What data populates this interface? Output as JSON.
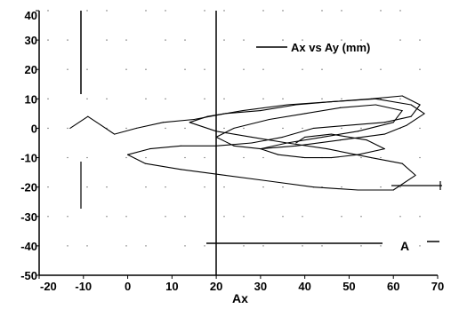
{
  "chart_data": {
    "type": "line",
    "title": "",
    "xlabel": "Ax",
    "ylabel": "",
    "xlim": [
      -20,
      70
    ],
    "ylim": [
      -50,
      40
    ],
    "x_ticks": [
      -20,
      -10,
      0,
      10,
      20,
      30,
      40,
      50,
      60,
      70
    ],
    "y_ticks": [
      40,
      30,
      20,
      10,
      0,
      -10,
      -20,
      -30,
      -40,
      -50
    ],
    "grid": "sparse dotted",
    "legend_position": "top-right",
    "series": [
      {
        "name": "Ax vs Ay (mm)",
        "x": [
          -13,
          -9,
          -6,
          -3,
          2,
          8,
          15,
          22,
          30,
          38,
          46,
          55,
          62,
          66,
          64,
          58,
          50,
          42,
          35,
          28,
          20,
          12,
          5,
          0,
          4,
          12,
          22,
          32,
          42,
          52,
          60,
          65,
          62,
          55,
          45,
          36,
          28,
          20,
          14,
          18,
          26,
          36,
          46,
          56,
          64,
          67,
          63,
          58,
          48,
          38,
          30,
          24,
          20,
          24,
          32,
          40,
          48,
          56,
          62,
          60,
          52,
          44,
          36,
          30,
          34,
          40,
          46,
          52,
          58,
          54,
          46,
          40,
          38
        ],
        "y": [
          0,
          4,
          1,
          -2,
          0,
          2,
          3,
          5,
          6,
          8,
          9,
          10,
          11,
          8,
          4,
          2,
          1,
          0,
          -3,
          -5,
          -6,
          -6,
          -7,
          -9,
          -12,
          -14,
          -16,
          -18,
          -20,
          -21,
          -21,
          -16,
          -12,
          -10,
          -7,
          -5,
          -3,
          -1,
          2,
          4,
          6,
          8,
          9,
          10,
          8,
          5,
          1,
          -2,
          -4,
          -6,
          -7,
          -6,
          -3,
          0,
          3,
          5,
          7,
          8,
          6,
          2,
          -1,
          -3,
          -5,
          -7,
          -9,
          -10,
          -10,
          -9,
          -7,
          -4,
          -2,
          -3,
          -5
        ]
      }
    ],
    "annotations": [
      "A"
    ]
  }
}
